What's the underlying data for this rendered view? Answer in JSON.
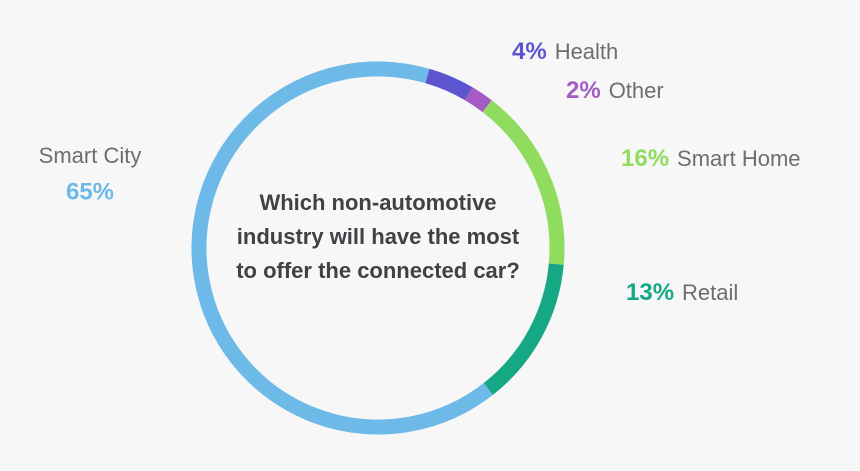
{
  "chart_data": {
    "type": "donut",
    "title": "Which non-automotive industry will have the most to offer the connected car?",
    "categories": [
      "Health",
      "Other",
      "Smart Home",
      "Retail",
      "Smart City"
    ],
    "values": [
      4,
      2,
      16,
      13,
      65
    ],
    "value_labels": [
      "4%",
      "2%",
      "16%",
      "13%",
      "65%"
    ],
    "colors": [
      "#5b55cf",
      "#a45bc6",
      "#8fdc5e",
      "#16a884",
      "#6dbae9"
    ]
  }
}
